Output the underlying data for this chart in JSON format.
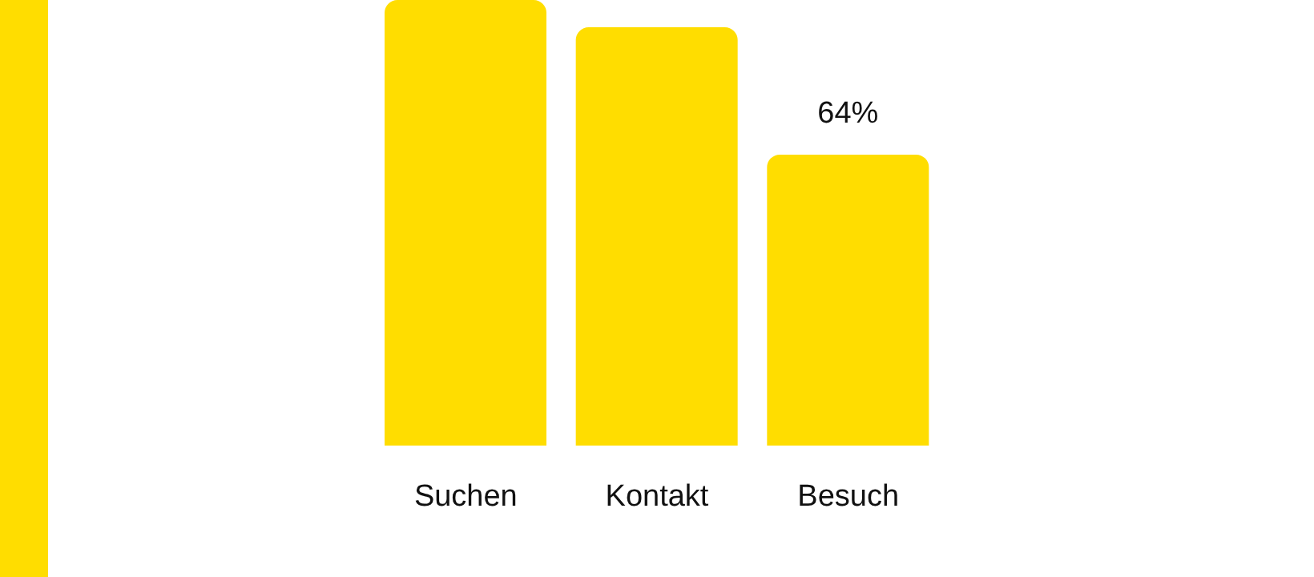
{
  "chart_data": {
    "type": "bar",
    "categories": [
      "Suchen",
      "Kontakt",
      "Besuch"
    ],
    "values": [
      98,
      92,
      64
    ],
    "value_labels": [
      null,
      null,
      "64%"
    ],
    "color": "#ffdd00",
    "ylim": [
      0,
      98
    ],
    "grid": false,
    "legend": false
  }
}
